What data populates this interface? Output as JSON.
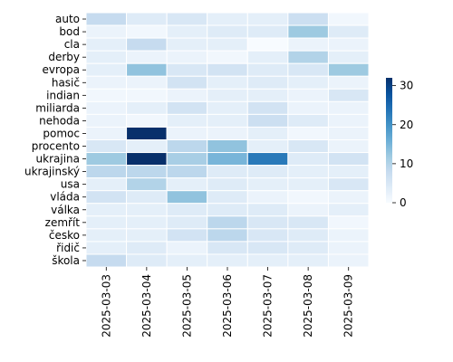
{
  "chart_data": {
    "type": "heatmap",
    "title": "",
    "xlabel": "",
    "ylabel": "",
    "x": [
      "2025-03-03",
      "2025-03-04",
      "2025-03-05",
      "2025-03-06",
      "2025-03-07",
      "2025-03-08",
      "2025-03-09"
    ],
    "y": [
      "auto",
      "bod",
      "cla",
      "derby",
      "evropa",
      "hasič",
      "indian",
      "miliarda",
      "nehoda",
      "pomoc",
      "procento",
      "ukrajina",
      "ukrajinský",
      "usa",
      "vláda",
      "válka",
      "zemřít",
      "česko",
      "řidič",
      "škola"
    ],
    "values": [
      [
        8,
        4,
        5,
        3,
        3,
        7,
        1
      ],
      [
        2,
        1,
        3,
        4,
        4,
        12,
        4
      ],
      [
        3,
        8,
        3,
        3,
        0,
        2,
        2
      ],
      [
        3,
        2,
        2,
        1,
        3,
        10,
        3
      ],
      [
        3,
        13,
        5,
        6,
        4,
        5,
        12
      ],
      [
        2,
        2,
        6,
        3,
        4,
        3,
        2
      ],
      [
        1,
        1,
        2,
        3,
        3,
        2,
        5
      ],
      [
        2,
        3,
        6,
        3,
        6,
        2,
        2
      ],
      [
        2,
        1,
        3,
        3,
        7,
        4,
        2
      ],
      [
        2,
        32,
        2,
        2,
        3,
        1,
        2
      ],
      [
        5,
        3,
        9,
        13,
        3,
        5,
        2
      ],
      [
        12,
        32,
        11,
        15,
        23,
        4,
        6
      ],
      [
        9,
        9,
        9,
        4,
        4,
        3,
        3
      ],
      [
        3,
        10,
        3,
        4,
        3,
        3,
        5
      ],
      [
        6,
        4,
        13,
        4,
        2,
        1,
        2
      ],
      [
        3,
        3,
        4,
        4,
        4,
        2,
        3
      ],
      [
        3,
        3,
        4,
        9,
        5,
        5,
        1
      ],
      [
        3,
        3,
        6,
        9,
        5,
        4,
        2
      ],
      [
        3,
        4,
        2,
        5,
        5,
        4,
        2
      ],
      [
        8,
        4,
        3,
        3,
        3,
        3,
        2
      ]
    ],
    "colorbar": {
      "min": 0,
      "max": 32,
      "ticks": [
        0,
        10,
        20,
        30
      ],
      "colormap": "Blues"
    },
    "grid": false,
    "cell_border_color": "#ffffff"
  }
}
